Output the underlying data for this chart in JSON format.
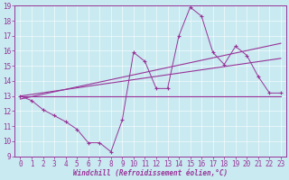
{
  "xlabel": "Windchill (Refroidissement éolien,°C)",
  "bg_color": "#c8eaf0",
  "line_color": "#993399",
  "x_data": [
    0,
    1,
    2,
    3,
    4,
    5,
    6,
    7,
    8,
    9,
    10,
    11,
    12,
    13,
    14,
    15,
    16,
    17,
    18,
    19,
    20,
    21,
    22,
    23
  ],
  "series1": [
    13.0,
    12.7,
    12.1,
    11.7,
    11.3,
    10.8,
    9.9,
    9.9,
    9.3,
    11.4,
    15.9,
    15.3,
    13.5,
    13.5,
    17.0,
    18.9,
    18.3,
    15.9,
    15.1,
    16.3,
    15.7,
    14.3,
    13.2,
    13.2
  ],
  "trend1_x": [
    0,
    23
  ],
  "trend1_y": [
    13.0,
    13.0
  ],
  "trend2_x": [
    0,
    23
  ],
  "trend2_y": [
    13.0,
    15.5
  ],
  "trend3_x": [
    0,
    23
  ],
  "trend3_y": [
    12.8,
    16.5
  ],
  "ylim": [
    9,
    19
  ],
  "xlim": [
    -0.5,
    23.5
  ],
  "yticks": [
    9,
    10,
    11,
    12,
    13,
    14,
    15,
    16,
    17,
    18,
    19
  ],
  "xticks": [
    0,
    1,
    2,
    3,
    4,
    5,
    6,
    7,
    8,
    9,
    10,
    11,
    12,
    13,
    14,
    15,
    16,
    17,
    18,
    19,
    20,
    21,
    22,
    23
  ],
  "xlabel_fontsize": 5.5,
  "tick_fontsize": 5.5
}
